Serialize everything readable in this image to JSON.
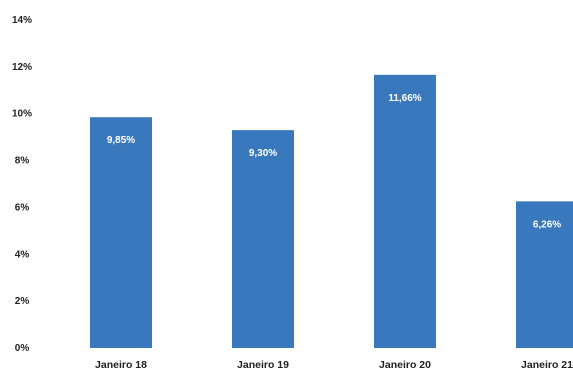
{
  "chart_data": {
    "type": "bar",
    "categories": [
      "Janeiro 18",
      "Janeiro 19",
      "Janeiro 20",
      "Janeiro 21"
    ],
    "values": [
      9.85,
      9.3,
      11.66,
      6.26
    ],
    "data_labels": [
      "9,85%",
      "9,30%",
      "11,66%",
      "6,26%"
    ],
    "yticks": [
      {
        "value": 0,
        "label": "0%"
      },
      {
        "value": 2,
        "label": "2%"
      },
      {
        "value": 4,
        "label": "4%"
      },
      {
        "value": 6,
        "label": "6%"
      },
      {
        "value": 8,
        "label": "8%"
      },
      {
        "value": 10,
        "label": "10%"
      },
      {
        "value": 12,
        "label": "12%"
      },
      {
        "value": 14,
        "label": "14%"
      }
    ],
    "ylim": [
      0,
      14
    ],
    "title": "",
    "xlabel": "",
    "ylabel": "",
    "grid": false,
    "legend": "none",
    "bar_color": "#3a78be"
  }
}
